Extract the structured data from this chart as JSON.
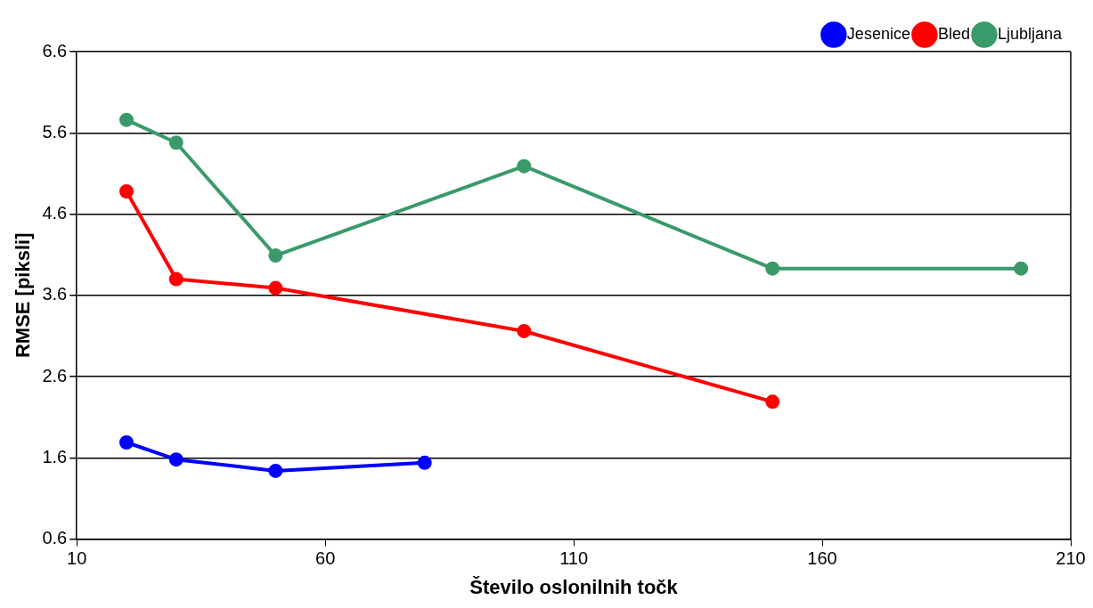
{
  "chart_data": {
    "type": "line",
    "xlabel": "Število oslonilnih točk",
    "ylabel": "RMSE [piksli]",
    "xlim": [
      10,
      210
    ],
    "xticks": [
      10,
      60,
      110,
      160,
      210
    ],
    "ylim": [
      0.6,
      6.6
    ],
    "yticks": [
      {
        "value": 0.6,
        "label": "0.6"
      },
      {
        "value": 1.6,
        "label": "1.6"
      },
      {
        "value": 2.6,
        "label": "2.6"
      },
      {
        "value": 3.6,
        "label": "3.6"
      },
      {
        "value": 4.6,
        "label": "4.6"
      },
      {
        "value": 5.6,
        "label": "5.6"
      },
      {
        "value": 6.6,
        "label": "6.6"
      }
    ],
    "grid": "y",
    "legend": "top right",
    "marker": "circle",
    "line_style": "solid",
    "series": [
      {
        "name": "Jesenice",
        "color": "#0000ff",
        "x": [
          20,
          30,
          50,
          80
        ],
        "values": [
          1.79,
          1.58,
          1.44,
          1.54
        ]
      },
      {
        "name": "Bled",
        "color": "#ff0000",
        "x": [
          20,
          30,
          50,
          100,
          150
        ],
        "values": [
          4.88,
          3.8,
          3.69,
          3.16,
          2.29
        ]
      },
      {
        "name": "Ljubljana",
        "color": "#3a9a6a",
        "x": [
          20,
          30,
          50,
          100,
          150,
          200
        ],
        "values": [
          5.76,
          5.48,
          4.09,
          5.19,
          3.93,
          3.93
        ]
      }
    ]
  }
}
